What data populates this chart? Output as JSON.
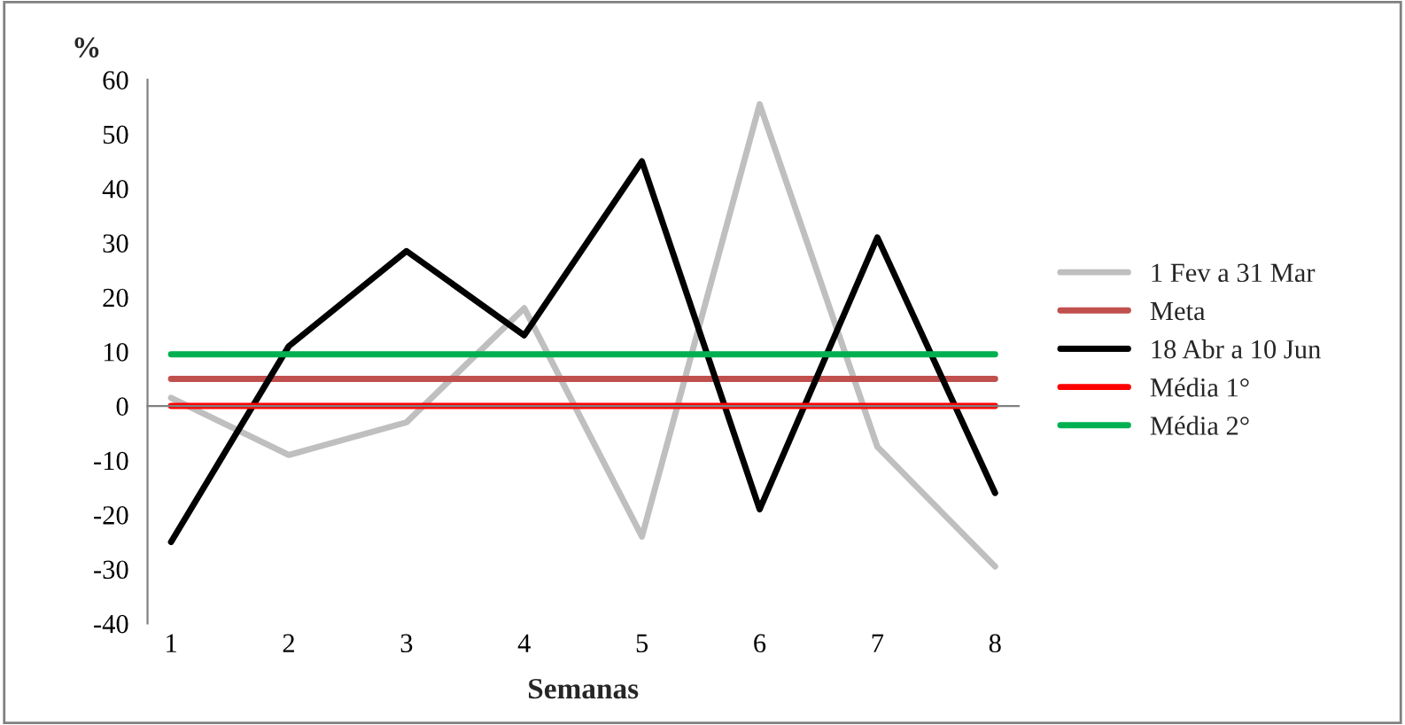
{
  "chart_data": {
    "type": "line",
    "xlabel": "Semanas",
    "ylabel": "%",
    "categories": [
      "1",
      "2",
      "3",
      "4",
      "5",
      "6",
      "7",
      "8"
    ],
    "series": [
      {
        "name": "1 Fev a 31 Mar",
        "color": "#bfbfbf",
        "values": [
          1.5,
          -9,
          -3,
          18,
          -24,
          55.5,
          -7.5,
          -29.5
        ]
      },
      {
        "name": "Meta",
        "color": "#c0504d",
        "values": [
          5,
          5,
          5,
          5,
          5,
          5,
          5,
          5
        ]
      },
      {
        "name": "18 Abr a 10 Jun",
        "color": "#000000",
        "values": [
          -25,
          11,
          28.5,
          13,
          45,
          -19,
          31,
          -16
        ]
      },
      {
        "name": "Média 1°",
        "color": "#ff0000",
        "values": [
          0,
          0,
          0,
          0,
          0,
          0,
          0,
          0
        ]
      },
      {
        "name": "Média 2°",
        "color": "#00b050",
        "values": [
          9.5,
          9.5,
          9.5,
          9.5,
          9.5,
          9.5,
          9.5,
          9.5
        ]
      }
    ],
    "ylim": [
      -40,
      60
    ],
    "yticks": [
      -40,
      -30,
      -20,
      -10,
      0,
      10,
      20,
      30,
      40,
      50,
      60
    ],
    "legend": "right",
    "marker": "none",
    "line_style": "solid"
  }
}
